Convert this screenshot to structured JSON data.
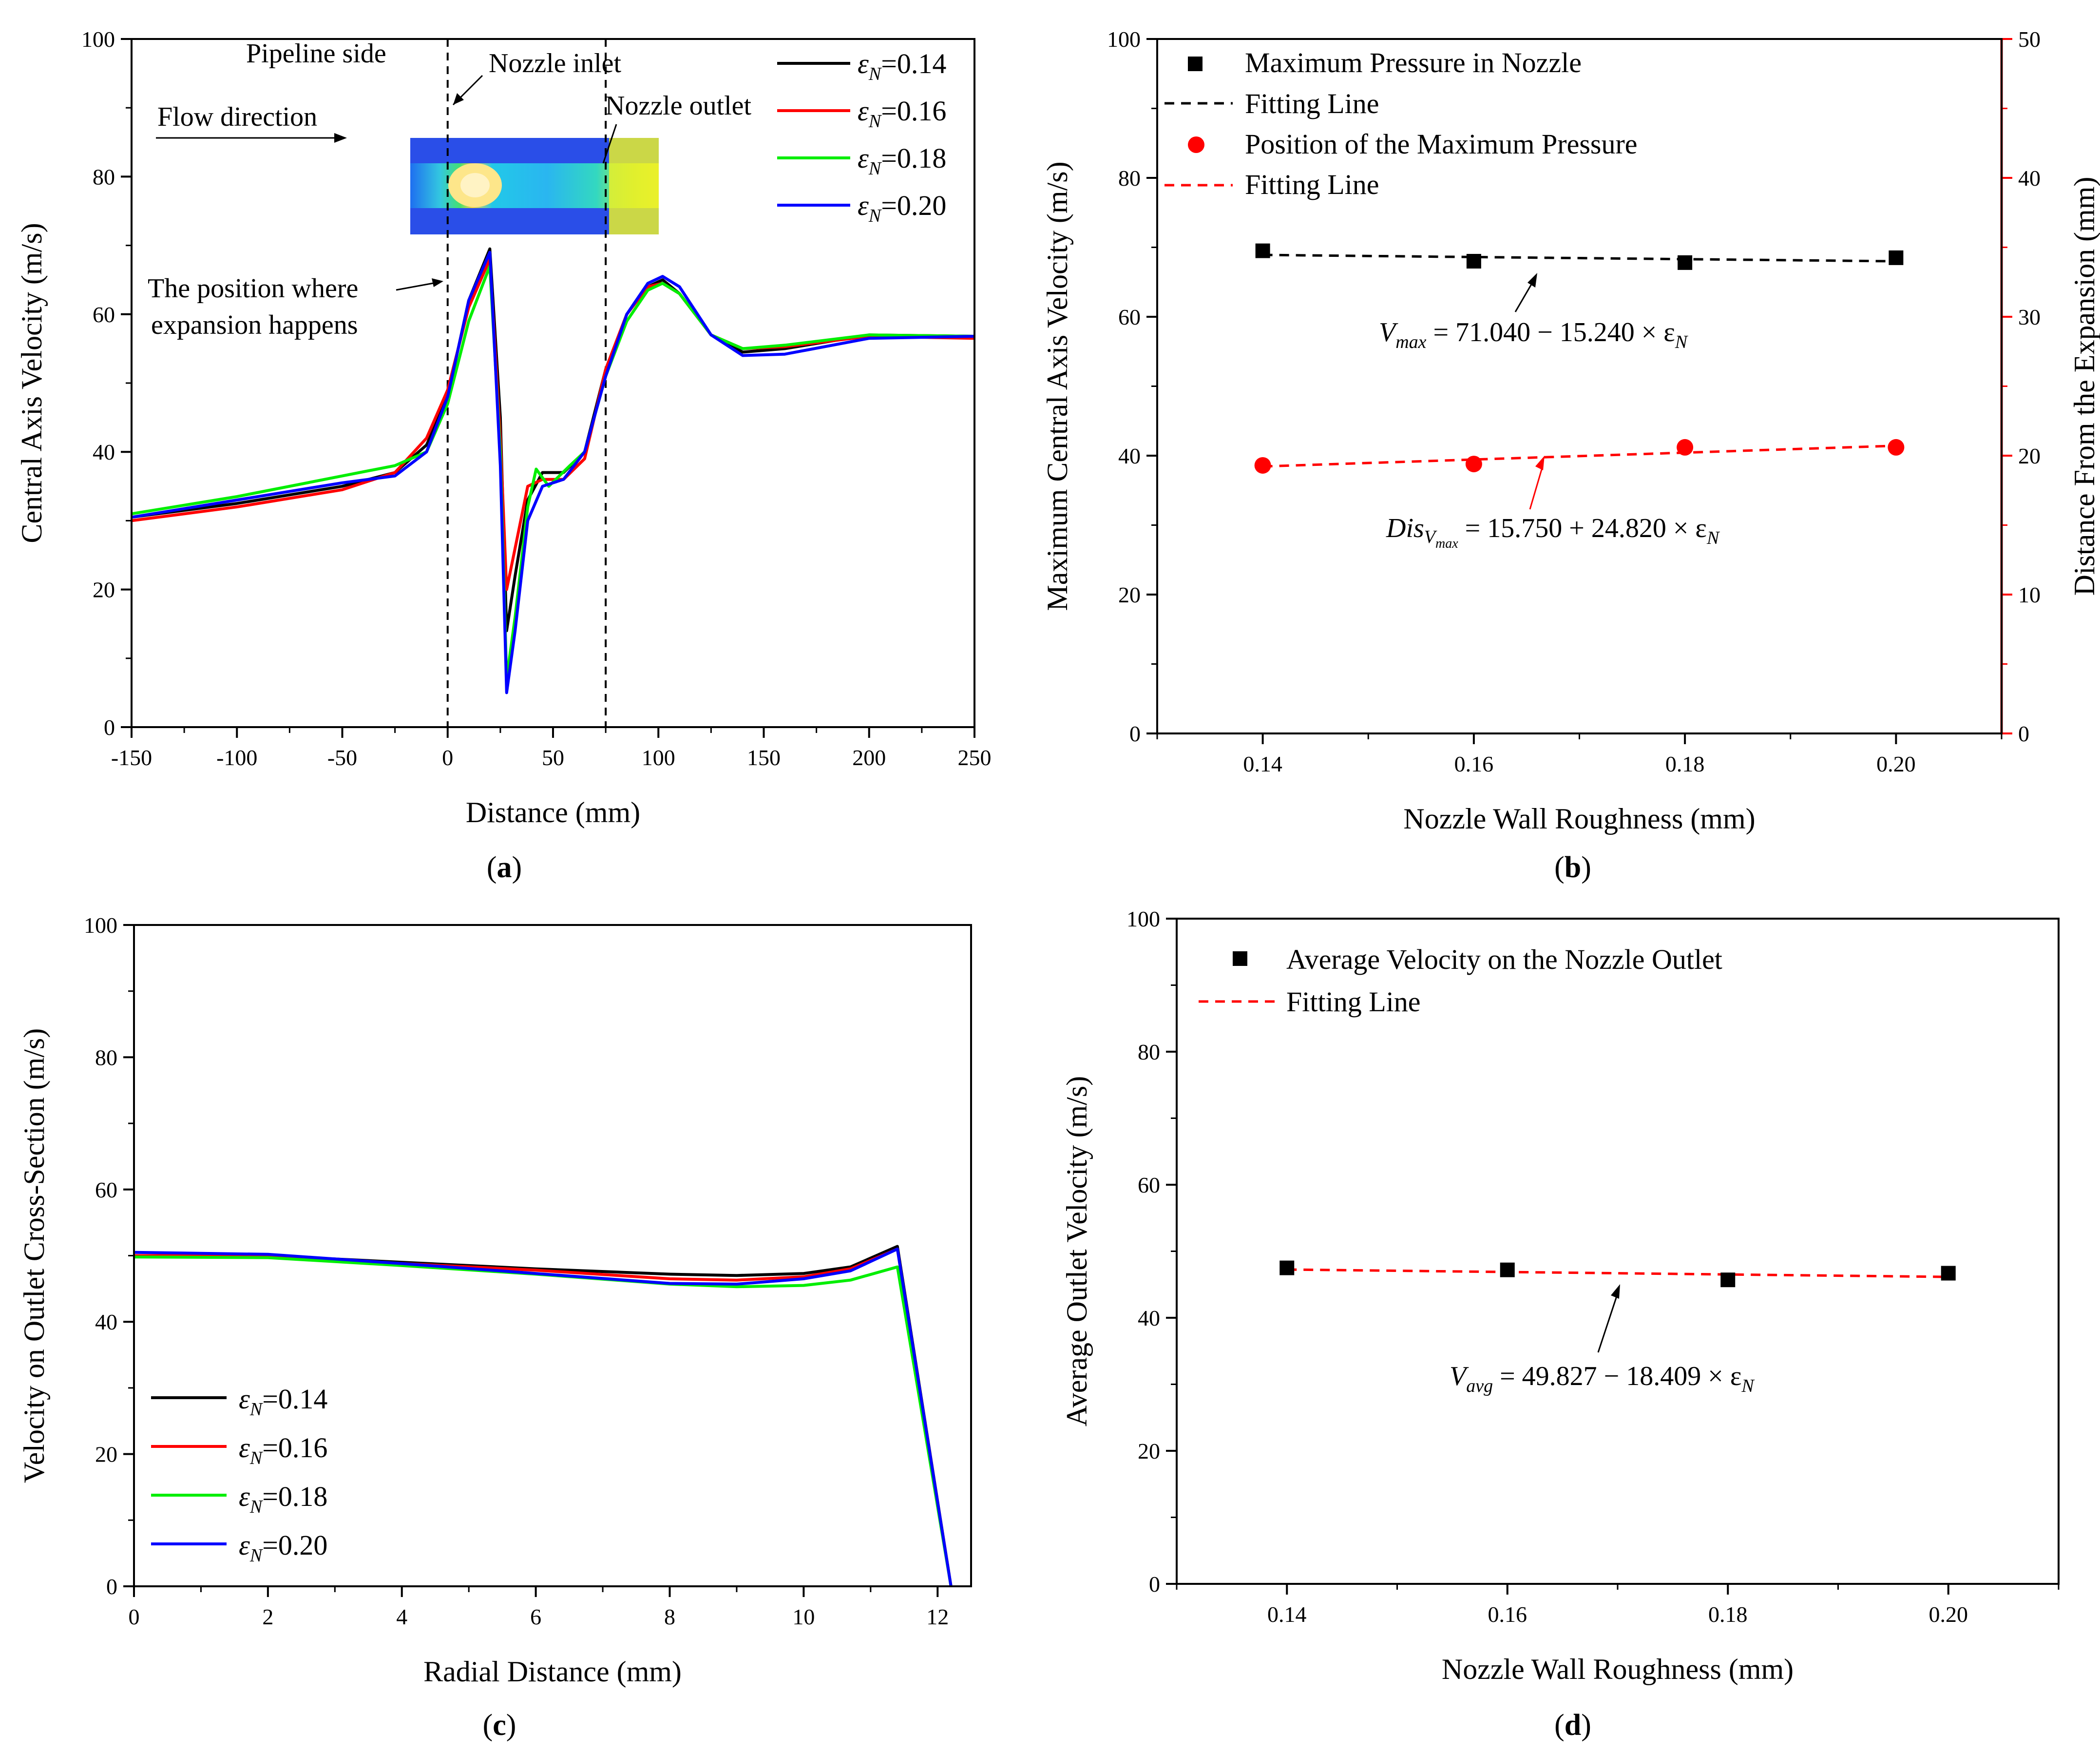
{
  "chart_data": [
    {
      "id": "a",
      "type": "line",
      "panel_label": "a",
      "xlabel": "Distance (mm)",
      "ylabel": "Central Axis Velocity (m/s)",
      "xlim": [
        -150,
        250
      ],
      "ylim": [
        0,
        100
      ],
      "xticks": [
        -150,
        -100,
        -50,
        0,
        50,
        100,
        150,
        200,
        250
      ],
      "yticks": [
        0,
        20,
        40,
        60,
        80,
        100
      ],
      "legend_position": "top-right",
      "series": [
        {
          "name": "εN=0.14",
          "color": "#000000",
          "points": [
            [
              -150,
              30.5
            ],
            [
              -100,
              32.5
            ],
            [
              -50,
              35
            ],
            [
              -25,
              37
            ],
            [
              -10,
              41
            ],
            [
              0,
              48
            ],
            [
              10,
              62
            ],
            [
              20,
              69.5
            ],
            [
              25,
              45
            ],
            [
              28,
              14
            ],
            [
              32,
              22
            ],
            [
              38,
              33
            ],
            [
              45,
              37
            ],
            [
              55,
              37
            ],
            [
              65,
              40
            ],
            [
              75,
              52
            ],
            [
              85,
              60
            ],
            [
              95,
              64
            ],
            [
              102,
              65
            ],
            [
              110,
              63
            ],
            [
              125,
              57
            ],
            [
              140,
              54.5
            ],
            [
              160,
              55
            ],
            [
              200,
              57
            ],
            [
              250,
              56.8
            ]
          ]
        },
        {
          "name": "εN=0.16",
          "color": "#ff0000",
          "points": [
            [
              -150,
              30
            ],
            [
              -100,
              32
            ],
            [
              -50,
              34.5
            ],
            [
              -25,
              37
            ],
            [
              -10,
              42
            ],
            [
              0,
              49
            ],
            [
              10,
              61
            ],
            [
              20,
              68
            ],
            [
              25,
              42
            ],
            [
              28,
              20
            ],
            [
              32,
              26
            ],
            [
              38,
              35
            ],
            [
              45,
              36
            ],
            [
              55,
              36
            ],
            [
              65,
              39
            ],
            [
              75,
              52
            ],
            [
              85,
              60
            ],
            [
              95,
              64
            ],
            [
              102,
              64.5
            ],
            [
              110,
              63
            ],
            [
              125,
              57
            ],
            [
              140,
              55
            ],
            [
              160,
              55.3
            ],
            [
              200,
              56.8
            ],
            [
              250,
              56.5
            ]
          ]
        },
        {
          "name": "εN=0.18",
          "color": "#00ee00",
          "points": [
            [
              -150,
              31
            ],
            [
              -100,
              33.5
            ],
            [
              -50,
              36.5
            ],
            [
              -25,
              38
            ],
            [
              -10,
              40
            ],
            [
              0,
              47
            ],
            [
              10,
              59
            ],
            [
              20,
              67
            ],
            [
              25,
              40
            ],
            [
              28,
              7
            ],
            [
              32,
              16
            ],
            [
              38,
              32
            ],
            [
              42,
              37.5
            ],
            [
              48,
              35
            ],
            [
              58,
              38
            ],
            [
              65,
              40
            ],
            [
              75,
              51
            ],
            [
              85,
              59
            ],
            [
              95,
              63.5
            ],
            [
              102,
              64.5
            ],
            [
              110,
              63
            ],
            [
              125,
              57
            ],
            [
              140,
              55
            ],
            [
              160,
              55.5
            ],
            [
              200,
              57
            ],
            [
              250,
              56.8
            ]
          ]
        },
        {
          "name": "εN=0.20",
          "color": "#0000ff",
          "points": [
            [
              -150,
              30.5
            ],
            [
              -100,
              33
            ],
            [
              -50,
              35.5
            ],
            [
              -25,
              36.5
            ],
            [
              -10,
              40
            ],
            [
              0,
              48
            ],
            [
              10,
              62
            ],
            [
              20,
              69
            ],
            [
              25,
              38
            ],
            [
              28,
              5
            ],
            [
              32,
              14
            ],
            [
              38,
              30
            ],
            [
              45,
              35
            ],
            [
              55,
              36
            ],
            [
              65,
              40
            ],
            [
              75,
              51
            ],
            [
              85,
              60
            ],
            [
              95,
              64.5
            ],
            [
              102,
              65.5
            ],
            [
              110,
              64
            ],
            [
              125,
              57
            ],
            [
              140,
              54
            ],
            [
              160,
              54.2
            ],
            [
              200,
              56.5
            ],
            [
              250,
              56.8
            ]
          ]
        }
      ],
      "vlines": [
        0,
        75
      ],
      "annotations": [
        "Pipeline side",
        "Nozzle inlet",
        "Nozzle outlet",
        "Flow direction",
        "The position where",
        "expansion happens"
      ]
    },
    {
      "id": "b",
      "type": "scatter",
      "panel_label": "b",
      "xlabel": "Nozzle Wall Roughness (mm)",
      "ylabel": "Maximum Central Axis Velocity (m/s)",
      "y2label": "Distance From the Expansion (mm)",
      "xlim": [
        0.13,
        0.21
      ],
      "ylim": [
        0,
        100
      ],
      "y2lim": [
        0,
        50
      ],
      "xticks": [
        "0.14",
        "0.16",
        "0.18",
        "0.20"
      ],
      "yticks": [
        0,
        20,
        40,
        60,
        80,
        100
      ],
      "y2ticks": [
        0,
        10,
        20,
        30,
        40,
        50
      ],
      "legend_position": "top-left",
      "series": [
        {
          "name": "Maximum Pressure in Nozzle",
          "axis": "left",
          "color": "#000000",
          "marker": "square",
          "x": [
            0.14,
            0.16,
            0.18,
            0.2
          ],
          "y": [
            69.5,
            68,
            67.8,
            68.5
          ]
        },
        {
          "name": "Position of the Maximum Pressure",
          "axis": "right",
          "color": "#ff0000",
          "marker": "circle",
          "x": [
            0.14,
            0.16,
            0.18,
            0.2
          ],
          "y": [
            19.3,
            19.4,
            20.6,
            20.6
          ]
        }
      ],
      "fits": [
        {
          "name": "Fitting Line",
          "axis": "left",
          "color": "#000000",
          "intercept": 71.04,
          "slope": -15.24
        },
        {
          "name": "Fitting Line",
          "axis": "right",
          "color": "#ff0000",
          "intercept": 15.75,
          "slope": 24.82
        }
      ],
      "equations": {
        "black": {
          "lhs": "V",
          "sub": "max",
          "rhs": " = 71.040 − 15.240 × ε",
          "tail": "N"
        },
        "red": {
          "lhs": "Dis",
          "sub": "V",
          "subsub": "max",
          "rhs": " = 15.750 + 24.820 × ε",
          "tail": "N"
        }
      }
    },
    {
      "id": "c",
      "type": "line",
      "panel_label": "c",
      "xlabel": "Radial Distance (mm)",
      "ylabel": "Velocity on Outlet Cross-Section (m/s)",
      "xlim": [
        0,
        12.5
      ],
      "ylim": [
        0,
        100
      ],
      "xticks": [
        0,
        2,
        4,
        6,
        8,
        10,
        12
      ],
      "yticks": [
        0,
        20,
        40,
        60,
        80,
        100
      ],
      "legend_position": "bottom-left",
      "series": [
        {
          "name": "εN=0.14",
          "color": "#000000",
          "points": [
            [
              0,
              50
            ],
            [
              2,
              50
            ],
            [
              4,
              49
            ],
            [
              6,
              48
            ],
            [
              8,
              47.2
            ],
            [
              9,
              47
            ],
            [
              10,
              47.3
            ],
            [
              10.7,
              48.3
            ],
            [
              11.4,
              51.4
            ],
            [
              12.2,
              0
            ]
          ]
        },
        {
          "name": "εN=0.16",
          "color": "#ff0000",
          "points": [
            [
              0,
              50
            ],
            [
              2,
              50
            ],
            [
              4,
              48.8
            ],
            [
              6,
              47.8
            ],
            [
              8,
              46.5
            ],
            [
              9,
              46.3
            ],
            [
              10,
              46.8
            ],
            [
              10.7,
              48
            ],
            [
              11.4,
              51
            ],
            [
              12.2,
              0
            ]
          ]
        },
        {
          "name": "εN=0.18",
          "color": "#00ee00",
          "points": [
            [
              0,
              49.8
            ],
            [
              2,
              49.7
            ],
            [
              4,
              48.5
            ],
            [
              6,
              47.2
            ],
            [
              8,
              45.7
            ],
            [
              9,
              45.3
            ],
            [
              10,
              45.5
            ],
            [
              10.7,
              46.3
            ],
            [
              11.4,
              48.3
            ],
            [
              12.2,
              0
            ]
          ]
        },
        {
          "name": "εN=0.20",
          "color": "#0000ff",
          "points": [
            [
              0,
              50.5
            ],
            [
              2,
              50.2
            ],
            [
              4,
              48.8
            ],
            [
              6,
              47.3
            ],
            [
              8,
              45.8
            ],
            [
              9,
              45.7
            ],
            [
              10,
              46.5
            ],
            [
              10.7,
              47.7
            ],
            [
              11.4,
              51
            ],
            [
              12.2,
              0
            ]
          ]
        }
      ]
    },
    {
      "id": "d",
      "type": "scatter",
      "panel_label": "d",
      "xlabel": "Nozzle Wall Roughness (mm)",
      "ylabel": "Average Outlet Velocity (m/s)",
      "xlim": [
        0.13,
        0.21
      ],
      "ylim": [
        0,
        100
      ],
      "xticks": [
        "0.14",
        "0.16",
        "0.18",
        "0.20"
      ],
      "yticks": [
        0,
        20,
        40,
        60,
        80,
        100
      ],
      "legend_position": "top-left",
      "series": [
        {
          "name": "Average Velocity on the Nozzle Outlet",
          "color": "#000000",
          "marker": "square",
          "x": [
            0.14,
            0.16,
            0.18,
            0.2
          ],
          "y": [
            47.5,
            47.2,
            45.7,
            46.7
          ]
        }
      ],
      "fits": [
        {
          "name": "Fitting Line",
          "color": "#ff0000",
          "intercept": 49.827,
          "slope": -18.409
        }
      ],
      "equations": {
        "red": {
          "lhs": "V",
          "sub": "avg",
          "rhs": " = 49.827 − 18.409 × ε",
          "tail": "N"
        }
      }
    }
  ]
}
